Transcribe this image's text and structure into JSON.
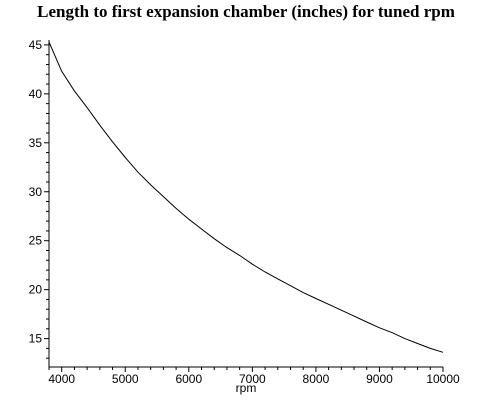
{
  "chart_data": {
    "type": "line",
    "title": "Length to first expansion chamber (inches) for tuned rpm",
    "xlabel": "rpm",
    "ylabel": "",
    "xlim": [
      3800,
      10000
    ],
    "ylim": [
      12.1,
      45.5
    ],
    "xticks_major": [
      4000,
      5000,
      6000,
      7000,
      8000,
      9000,
      10000
    ],
    "yticks_major": [
      15,
      20,
      25,
      30,
      35,
      40,
      45
    ],
    "grid": false,
    "series": [
      {
        "color": "#000000",
        "x": [
          3800,
          4000,
          4200,
          4400,
          4600,
          4800,
          5000,
          5200,
          5400,
          5600,
          5800,
          6000,
          6200,
          6400,
          6600,
          6800,
          7000,
          7200,
          7400,
          7600,
          7800,
          8000,
          8200,
          8400,
          8600,
          8800,
          9000,
          9200,
          9400,
          9600,
          9800,
          10000
        ],
        "y": [
          45.3,
          42.3,
          40.3,
          38.6,
          36.8,
          35.1,
          33.5,
          32.0,
          30.7,
          29.5,
          28.3,
          27.2,
          26.2,
          25.2,
          24.3,
          23.5,
          22.6,
          21.8,
          21.1,
          20.4,
          19.7,
          19.1,
          18.5,
          17.9,
          17.3,
          16.7,
          16.1,
          15.6,
          15.0,
          14.5,
          14.0,
          13.6
        ]
      }
    ]
  }
}
